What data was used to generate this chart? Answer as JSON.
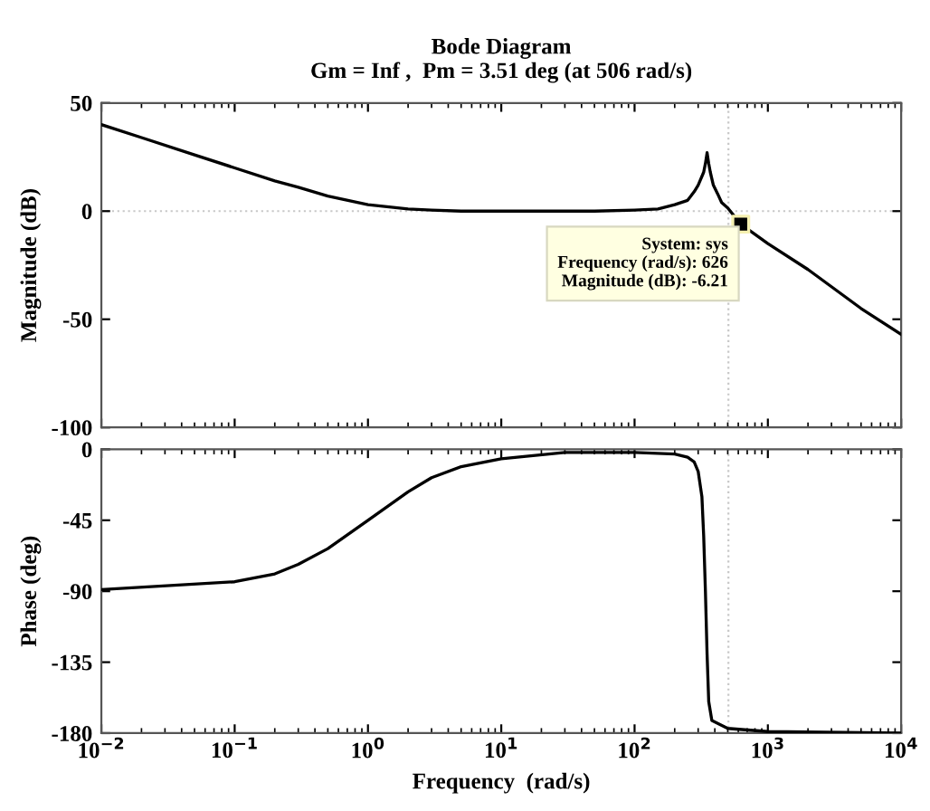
{
  "chart_data": [
    {
      "type": "line",
      "title": "Bode Diagram",
      "subtitle": "Gm = Inf ,  Pm = 3.51 deg (at 506 rad/s)",
      "ylabel": "Magnitude (dB)",
      "log": "x",
      "xlim": [
        0.01,
        10000
      ],
      "ylim": [
        -100,
        50
      ],
      "yticks": [
        -100,
        -50,
        0,
        50
      ],
      "xticks": [
        {
          "value": 0.01,
          "label": null
        },
        {
          "value": 0.1,
          "label": null
        },
        {
          "value": 1,
          "label": null
        },
        {
          "value": 10,
          "label": null
        },
        {
          "value": 100,
          "label": null
        },
        {
          "value": 1000,
          "label": null
        },
        {
          "value": 10000,
          "label": null
        }
      ],
      "tick_labels": "y",
      "grid": false,
      "legend": false,
      "series": [
        {
          "color": "#000000",
          "x": [
            0.01,
            0.02,
            0.05,
            0.1,
            0.2,
            0.3,
            0.5,
            1,
            2,
            3,
            5,
            10,
            50,
            100,
            150,
            200,
            250,
            280,
            300,
            330,
            340,
            350,
            360,
            370,
            390,
            420,
            450,
            500,
            626,
            1000,
            2000,
            5000,
            10000
          ],
          "values": [
            40,
            34,
            26,
            20,
            14,
            11,
            7,
            3,
            1,
            0.5,
            0,
            0,
            0,
            0.5,
            1,
            3,
            5,
            9,
            12,
            18,
            22,
            27,
            22,
            18,
            12,
            8,
            4,
            1.5,
            -6,
            -15,
            -27,
            -45,
            -57
          ]
        },
        {
          "type": "scatter",
          "marker": "square",
          "color": "#000000",
          "x": [
            626
          ],
          "values": [
            -6
          ]
        }
      ],
      "ref_lines": [
        {
          "axis": "y",
          "value": 0,
          "color": "#c8c8c8",
          "line_style": "dotted"
        },
        {
          "axis": "x",
          "value": 506,
          "color": "#c8c8c8",
          "line_style": "dotted"
        }
      ],
      "annotations": [
        {
          "text": "System: sys\nFrequency (rad/s): 626\nMagnitude (dB): -6.21",
          "x": 626,
          "y": -6.21
        }
      ]
    },
    {
      "type": "line",
      "xlabel": "Frequency  (rad/s)",
      "ylabel": "Phase (deg)",
      "log": "x",
      "xlim": [
        0.01,
        10000
      ],
      "ylim": [
        -180,
        0
      ],
      "yticks": [
        -180,
        -135,
        -90,
        -45,
        0
      ],
      "xticks": [
        {
          "value": 0.01,
          "label": "10$^{−2}$"
        },
        {
          "value": 0.1,
          "label": "10$^{−1}$"
        },
        {
          "value": 1,
          "label": "10$^{0}$"
        },
        {
          "value": 10,
          "label": "10$^{1}$"
        },
        {
          "value": 100,
          "label": "10$^{2}$"
        },
        {
          "value": 1000,
          "label": "10$^{3}$"
        },
        {
          "value": 10000,
          "label": "10$^{4}$"
        }
      ],
      "grid": false,
      "legend": false,
      "series": [
        {
          "color": "#000000",
          "x": [
            0.01,
            0.1,
            0.2,
            0.3,
            0.5,
            1,
            2,
            3,
            5,
            10,
            30,
            100,
            200,
            250,
            280,
            300,
            320,
            330,
            340,
            350,
            360,
            380,
            500,
            1000,
            10000
          ],
          "values": [
            -89,
            -84,
            -79,
            -73,
            -63,
            -45,
            -27,
            -18,
            -11,
            -6,
            -2,
            -2,
            -3,
            -5,
            -8,
            -14,
            -30,
            -55,
            -90,
            -130,
            -160,
            -172,
            -177,
            -179,
            -180
          ]
        }
      ],
      "ref_lines": [
        {
          "axis": "x",
          "value": 506,
          "color": "#c8c8c8",
          "line_style": "dotted"
        }
      ]
    }
  ]
}
